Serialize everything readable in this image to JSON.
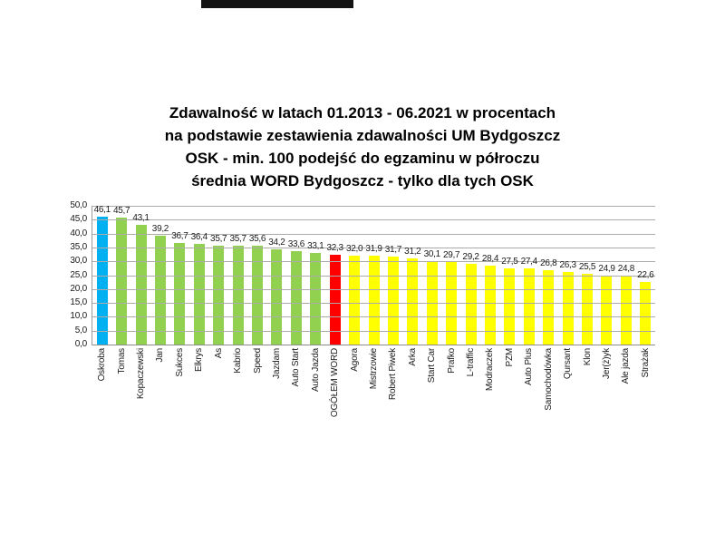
{
  "redaction_bar": {
    "color": "#141414"
  },
  "chart_data": {
    "type": "bar",
    "title_lines": [
      "Zdawalność w latach 01.2013 - 06.2021 w procentach",
      "na podstawie zestawienia zdawalności UM Bydgoszcz",
      "OSK - min. 100 podejść do egzaminu w półroczu",
      "średnia WORD Bydgoszcz - tylko dla tych OSK"
    ],
    "categories": [
      "Oskroba",
      "Tomas",
      "Kopaczewski",
      "Jan",
      "Sukces",
      "Elkrys",
      "As",
      "Kabrio",
      "Speed",
      "Jazdam",
      "Auto Start",
      "Auto Jazda",
      "OGÓŁEM WORD",
      "Agora",
      "Mistrzowie",
      "Robert Piwek",
      "Arka",
      "Start Car",
      "Prafko",
      "L-traffic",
      "Modraczek",
      "PZM",
      "Auto Plus",
      "Samochodówka",
      "Qursant",
      "Klon",
      "Jer(ż)yk",
      "Ale jazda",
      "Strażak"
    ],
    "values": [
      46.1,
      45.7,
      43.1,
      39.2,
      36.7,
      36.4,
      35.7,
      35.7,
      35.6,
      34.2,
      33.6,
      33.1,
      32.3,
      32.0,
      31.9,
      31.7,
      31.2,
      30.1,
      29.7,
      29.2,
      28.4,
      27.5,
      27.4,
      26.8,
      26.3,
      25.5,
      24.9,
      24.8,
      22.6
    ],
    "value_labels": [
      "46,1",
      "45,7",
      "43,1",
      "39,2",
      "36,7",
      "36,4",
      "35,7",
      "35,7",
      "35,6",
      "34,2",
      "33,6",
      "33,1",
      "32,3",
      "32,0",
      "31,9",
      "31,7",
      "31,2",
      "30,1",
      "29,7",
      "29,2",
      "28,4",
      "27,5",
      "27,4",
      "26,8",
      "26,3",
      "25,5",
      "24,9",
      "24,8",
      "22,6"
    ],
    "bar_colors": [
      "#00B0F0",
      "#92D050",
      "#92D050",
      "#92D050",
      "#92D050",
      "#92D050",
      "#92D050",
      "#92D050",
      "#92D050",
      "#92D050",
      "#92D050",
      "#92D050",
      "#FF0000",
      "#FFFF00",
      "#FFFF00",
      "#FFFF00",
      "#FFFF00",
      "#FFFF00",
      "#FFFF00",
      "#FFFF00",
      "#FFFF00",
      "#FFFF00",
      "#FFFF00",
      "#FFFF00",
      "#FFFF00",
      "#FFFF00",
      "#FFFF00",
      "#FFFF00",
      "#FFFF00"
    ],
    "color_roles": {
      "first_osk_highlight": "#00B0F0",
      "osk_above_average": "#92D050",
      "word_overall_average": "#FF0000",
      "osk_below_average": "#FFFF00"
    },
    "ylim": [
      0,
      50
    ],
    "ytick_step": 5,
    "ytick_labels": [
      "0,0",
      "5,0",
      "10,0",
      "15,0",
      "20,0",
      "25,0",
      "30,0",
      "35,0",
      "40,0",
      "45,0",
      "50,0"
    ],
    "grid": true,
    "legend": "none",
    "xlabel": "",
    "ylabel": ""
  }
}
